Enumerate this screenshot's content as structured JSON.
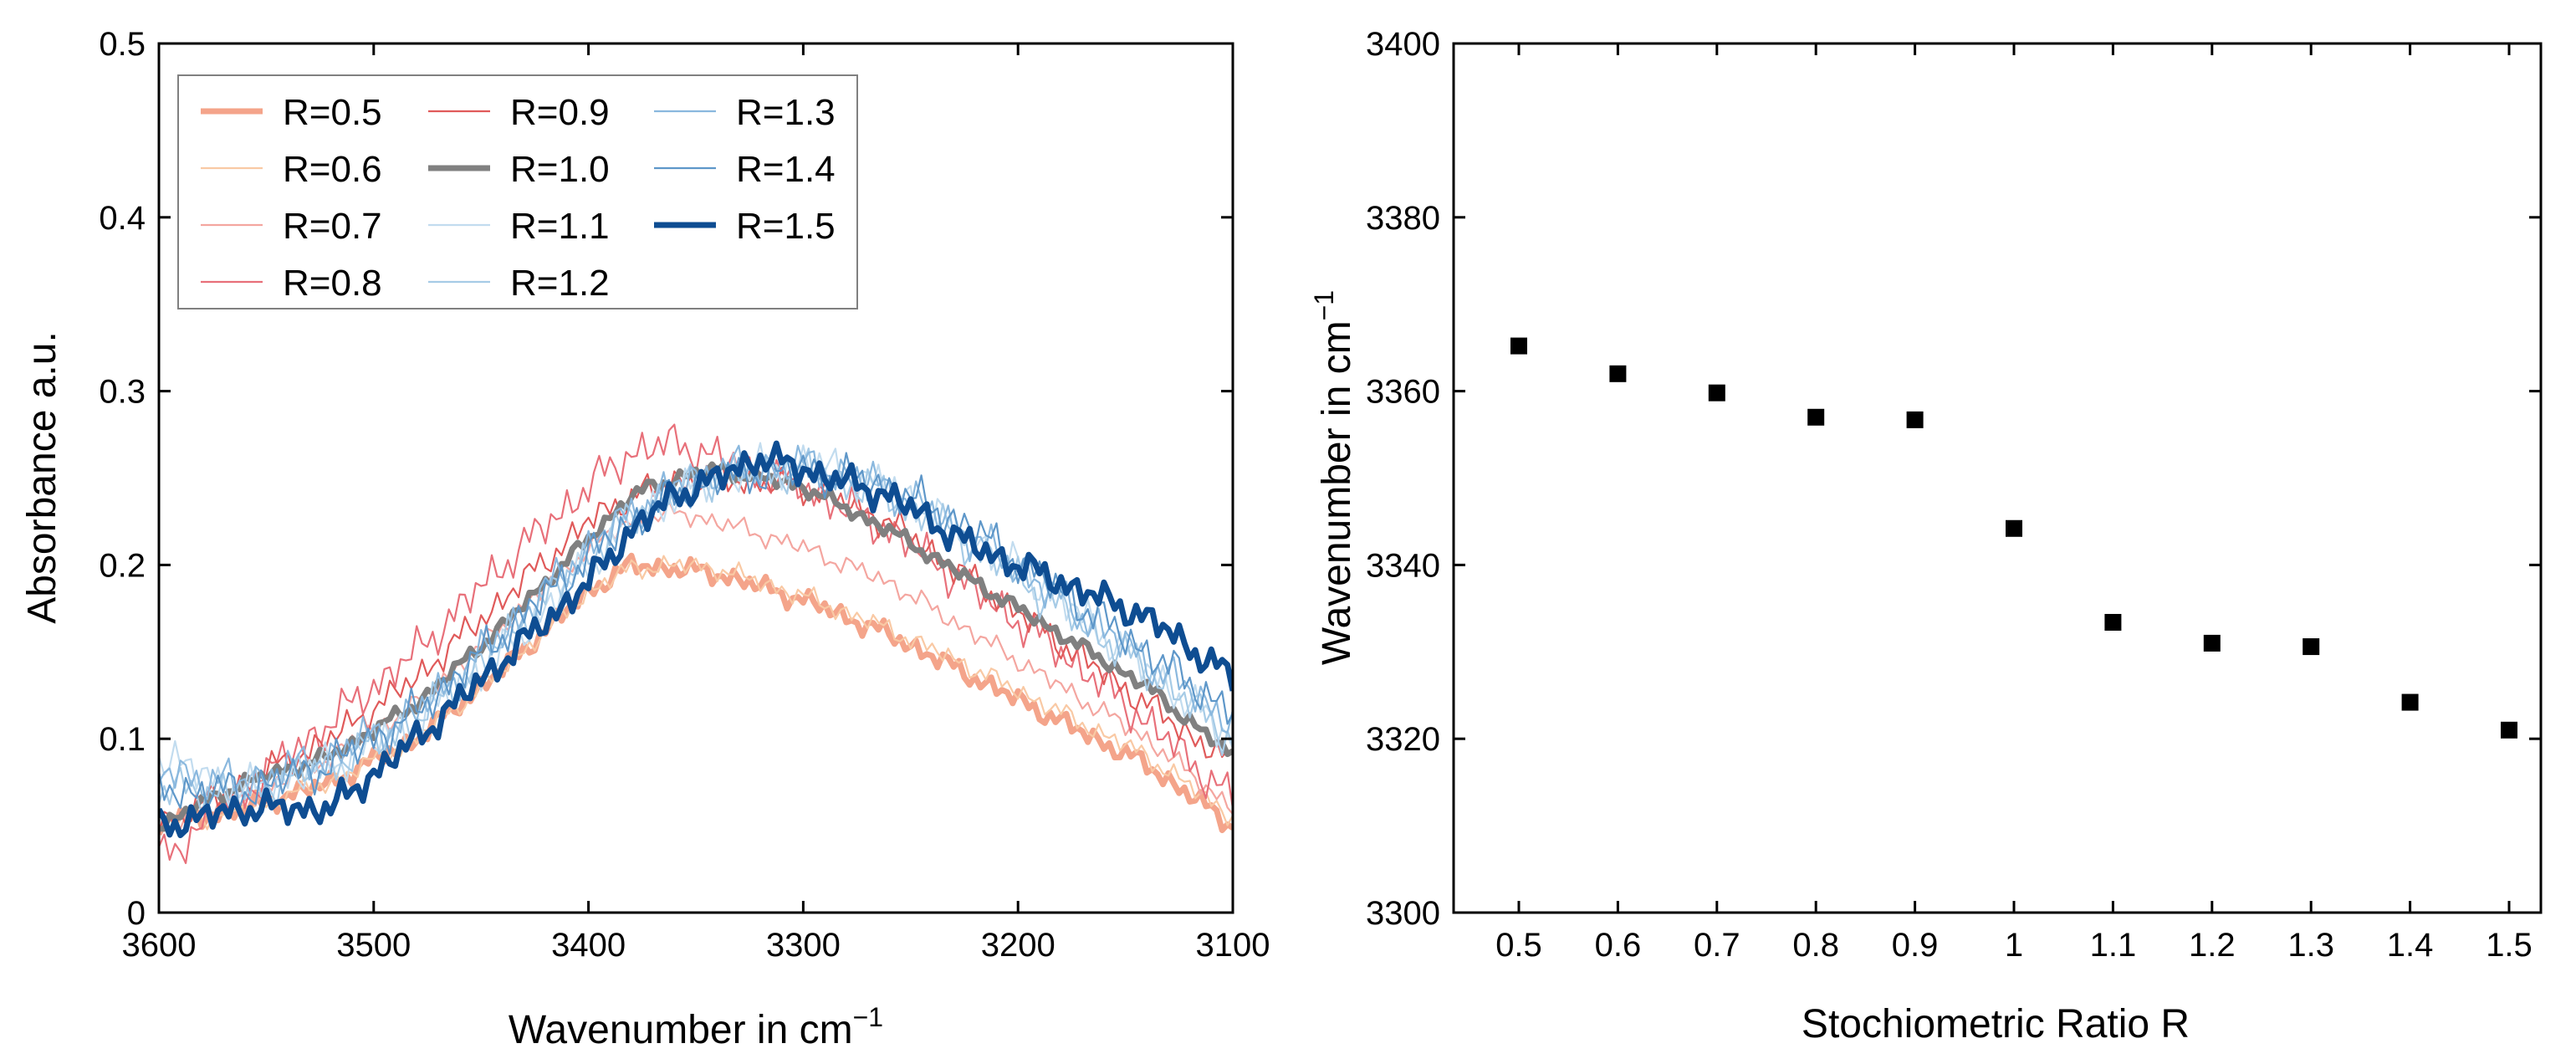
{
  "chart_data": [
    {
      "type": "line",
      "xlabel": "Wavenumber in cm",
      "xlabel_sup": "−1",
      "ylabel": "Absorbance a.u.",
      "xlim": [
        3600,
        3100
      ],
      "ylim": [
        0,
        0.5
      ],
      "x_ticks": [
        3600,
        3500,
        3400,
        3300,
        3200,
        3100
      ],
      "y_ticks": [
        0,
        0.1,
        0.2,
        0.3,
        0.4,
        0.5
      ],
      "y_tick_labels": [
        "0",
        "0.1",
        "0.2",
        "0.3",
        "0.4",
        "0.5"
      ],
      "legend_position": "top-left",
      "series": [
        {
          "name": "R=0.5",
          "color": "#f4a48a",
          "weight": "bold",
          "noise": 0.004,
          "x": [
            3600,
            3560,
            3520,
            3480,
            3440,
            3400,
            3380,
            3360,
            3340,
            3300,
            3260,
            3220,
            3180,
            3140,
            3100
          ],
          "values": [
            0.05,
            0.06,
            0.075,
            0.1,
            0.14,
            0.185,
            0.2,
            0.198,
            0.195,
            0.18,
            0.16,
            0.135,
            0.11,
            0.085,
            0.05
          ]
        },
        {
          "name": "R=0.6",
          "color": "#f9c9a4",
          "weight": "thin",
          "noise": 0.004,
          "x": [
            3600,
            3560,
            3520,
            3480,
            3440,
            3400,
            3380,
            3360,
            3340,
            3300,
            3260,
            3220,
            3180,
            3140,
            3100
          ],
          "values": [
            0.05,
            0.06,
            0.075,
            0.1,
            0.14,
            0.185,
            0.198,
            0.2,
            0.198,
            0.182,
            0.163,
            0.14,
            0.115,
            0.09,
            0.055
          ]
        },
        {
          "name": "R=0.7",
          "color": "#f4a6a0",
          "weight": "thin",
          "noise": 0.004,
          "x": [
            3600,
            3560,
            3520,
            3480,
            3440,
            3400,
            3380,
            3360,
            3340,
            3300,
            3260,
            3220,
            3180,
            3140,
            3100
          ],
          "values": [
            0.05,
            0.065,
            0.09,
            0.12,
            0.165,
            0.21,
            0.225,
            0.23,
            0.225,
            0.21,
            0.19,
            0.16,
            0.13,
            0.1,
            0.06
          ]
        },
        {
          "name": "R=0.8",
          "color": "#e8707a",
          "weight": "thin",
          "noise": 0.008,
          "x": [
            3600,
            3560,
            3520,
            3480,
            3440,
            3400,
            3380,
            3360,
            3340,
            3300,
            3260,
            3220,
            3180,
            3140,
            3100
          ],
          "values": [
            0.03,
            0.07,
            0.11,
            0.15,
            0.2,
            0.245,
            0.265,
            0.27,
            0.262,
            0.245,
            0.22,
            0.185,
            0.15,
            0.11,
            0.065
          ]
        },
        {
          "name": "R=0.9",
          "color": "#e05a5a",
          "weight": "thin",
          "noise": 0.006,
          "x": [
            3600,
            3560,
            3520,
            3480,
            3440,
            3400,
            3380,
            3360,
            3340,
            3300,
            3260,
            3220,
            3180,
            3140,
            3100
          ],
          "values": [
            0.05,
            0.075,
            0.1,
            0.135,
            0.18,
            0.225,
            0.24,
            0.248,
            0.25,
            0.245,
            0.225,
            0.19,
            0.155,
            0.12,
            0.085
          ]
        },
        {
          "name": "R=1.0",
          "color": "#808080",
          "weight": "bold",
          "noise": 0.003,
          "x": [
            3600,
            3560,
            3520,
            3480,
            3440,
            3400,
            3380,
            3360,
            3340,
            3300,
            3260,
            3220,
            3180,
            3140,
            3100
          ],
          "values": [
            0.05,
            0.075,
            0.09,
            0.12,
            0.165,
            0.215,
            0.24,
            0.25,
            0.255,
            0.245,
            0.22,
            0.19,
            0.16,
            0.13,
            0.09
          ]
        },
        {
          "name": "R=1.1",
          "color": "#c2dcef",
          "weight": "thin",
          "noise": 0.008,
          "x": [
            3600,
            3560,
            3520,
            3480,
            3440,
            3400,
            3380,
            3360,
            3340,
            3300,
            3260,
            3220,
            3180,
            3140,
            3100
          ],
          "values": [
            0.09,
            0.07,
            0.085,
            0.11,
            0.15,
            0.2,
            0.225,
            0.24,
            0.25,
            0.26,
            0.245,
            0.215,
            0.18,
            0.14,
            0.1
          ]
        },
        {
          "name": "R=1.2",
          "color": "#a6cbe6",
          "weight": "thin",
          "noise": 0.008,
          "x": [
            3600,
            3560,
            3520,
            3480,
            3440,
            3400,
            3380,
            3360,
            3340,
            3300,
            3260,
            3220,
            3180,
            3140,
            3100
          ],
          "values": [
            0.07,
            0.07,
            0.085,
            0.11,
            0.155,
            0.205,
            0.228,
            0.242,
            0.252,
            0.255,
            0.24,
            0.21,
            0.175,
            0.14,
            0.1
          ]
        },
        {
          "name": "R=1.3",
          "color": "#8ab8de",
          "weight": "thin",
          "noise": 0.008,
          "x": [
            3600,
            3560,
            3520,
            3480,
            3440,
            3400,
            3380,
            3360,
            3340,
            3300,
            3260,
            3220,
            3180,
            3140,
            3100
          ],
          "values": [
            0.08,
            0.075,
            0.09,
            0.115,
            0.16,
            0.21,
            0.23,
            0.245,
            0.255,
            0.258,
            0.245,
            0.215,
            0.18,
            0.145,
            0.11
          ]
        },
        {
          "name": "R=1.4",
          "color": "#5e97c9",
          "weight": "thin",
          "noise": 0.008,
          "x": [
            3600,
            3560,
            3520,
            3480,
            3440,
            3400,
            3380,
            3360,
            3340,
            3300,
            3260,
            3220,
            3180,
            3140,
            3100
          ],
          "values": [
            0.07,
            0.07,
            0.085,
            0.115,
            0.16,
            0.205,
            0.225,
            0.24,
            0.25,
            0.255,
            0.245,
            0.22,
            0.185,
            0.15,
            0.115
          ]
        },
        {
          "name": "R=1.5",
          "color": "#0e4d92",
          "weight": "bold",
          "noise": 0.006,
          "x": [
            3600,
            3560,
            3520,
            3480,
            3440,
            3400,
            3380,
            3360,
            3340,
            3320,
            3300,
            3260,
            3220,
            3180,
            3140,
            3100
          ],
          "values": [
            0.05,
            0.06,
            0.06,
            0.1,
            0.145,
            0.19,
            0.22,
            0.24,
            0.25,
            0.262,
            0.255,
            0.24,
            0.21,
            0.19,
            0.17,
            0.135
          ]
        }
      ]
    },
    {
      "type": "scatter",
      "xlabel": "Stochiometric Ratio R",
      "ylabel": "Wavenumber in cm",
      "ylabel_sup": "−1",
      "ylim": [
        3300,
        3400
      ],
      "y_ticks": [
        3300,
        3320,
        3340,
        3360,
        3380,
        3400
      ],
      "categories": [
        "0.5",
        "0.6",
        "0.7",
        "0.8",
        "0.9",
        "1",
        "1.1",
        "1.2",
        "1.3",
        "1.4",
        "1.5"
      ],
      "values": [
        3365.2,
        3362.0,
        3359.8,
        3357.0,
        3356.7,
        3344.2,
        3333.4,
        3331.0,
        3330.6,
        3324.2,
        3321.0
      ],
      "marker": "square",
      "marker_color": "#000000"
    }
  ]
}
